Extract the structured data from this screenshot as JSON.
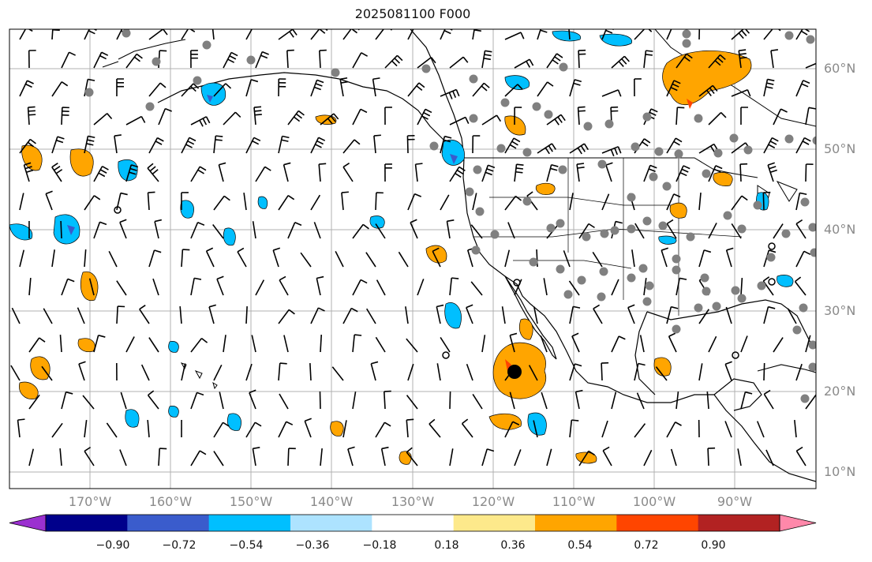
{
  "title": "2025081100 F000",
  "map": {
    "projection": "Mercator",
    "lon_range": [
      -180,
      -80
    ],
    "lat_range": [
      8,
      65
    ],
    "grid": true,
    "lat_labels": [
      "60°N",
      "50°N",
      "40°N",
      "30°N",
      "20°N",
      "10°N"
    ],
    "lon_labels": [
      "170°W",
      "160°W",
      "150°W",
      "140°W",
      "130°W",
      "120°W",
      "110°W",
      "100°W",
      "90°W"
    ]
  },
  "colorbar": {
    "ticks": [
      "−0.90",
      "−0.72",
      "−0.54",
      "−0.36",
      "−0.18",
      "0.18",
      "0.36",
      "0.54",
      "0.72",
      "0.90"
    ],
    "colors": [
      "#9b30d0",
      "#00008b",
      "#3a5ccc",
      "#00bfff",
      "#ade3ff",
      "#ffffff",
      "#fde98b",
      "#ffa500",
      "#ff4500",
      "#b22222",
      "#ff88aa"
    ]
  },
  "colors": {
    "land_outline": "#000000",
    "grid_line": "#b0b0b0",
    "station_marker": "#808080",
    "barb": "#000000"
  }
}
